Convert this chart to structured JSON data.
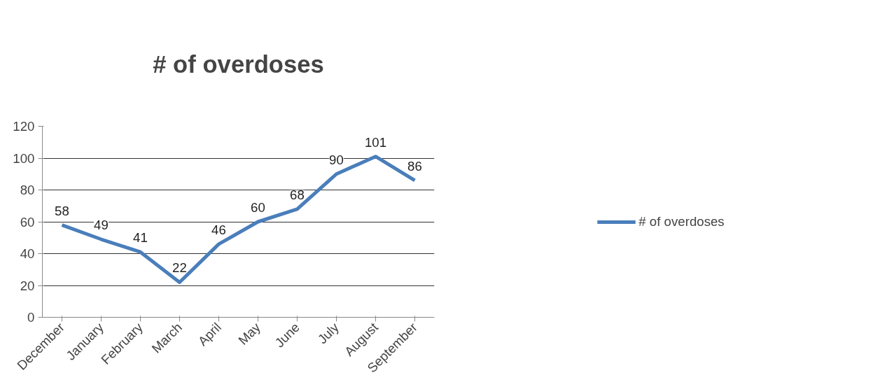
{
  "chart_data": {
    "type": "line",
    "title": "# of overdoses",
    "categories": [
      "December",
      "January",
      "February",
      "March",
      "April",
      "May",
      "June",
      "July",
      "August",
      "September"
    ],
    "series": [
      {
        "name": "# of overdoses",
        "color": "#4a7ebb",
        "values": [
          58,
          49,
          41,
          22,
          46,
          60,
          68,
          90,
          101,
          86
        ]
      }
    ],
    "ylim": [
      0,
      120
    ],
    "yticks": [
      0,
      20,
      40,
      60,
      80,
      100,
      120
    ],
    "grid": "y",
    "legend": "right",
    "data_labels": true,
    "marker": "none",
    "line_style": "solid"
  }
}
